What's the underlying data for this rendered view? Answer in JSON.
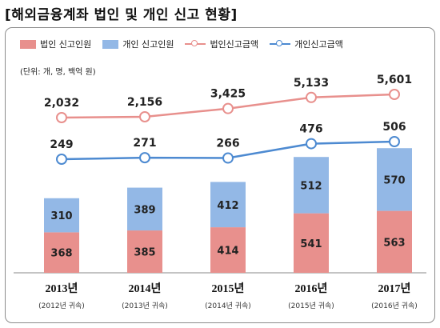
{
  "title": "[해외금융계좌 법인 및 개인 신고 현황]",
  "unit_note": "(단위: 개, 명, 백억 원)",
  "colors": {
    "corp_bar": "#e8908d",
    "indiv_bar": "#93b8e6",
    "corp_line": "#e8908d",
    "indiv_line": "#4d8ad1",
    "frame": "#8c8c8c"
  },
  "chart_data": {
    "type": "bar",
    "categories": [
      "2013년",
      "2014년",
      "2015년",
      "2016년",
      "2017년"
    ],
    "category_sublabels": [
      "(2012년 귀속)",
      "(2013년 귀속)",
      "(2014년 귀속)",
      "(2015년 귀속)",
      "(2016년 귀속)"
    ],
    "bar_series": [
      {
        "name": "법인 신고인원",
        "values": [
          368,
          385,
          414,
          541,
          563
        ]
      },
      {
        "name": "개인 신고인원",
        "values": [
          310,
          389,
          412,
          512,
          570
        ]
      }
    ],
    "line_series": [
      {
        "name": "법인신고금액",
        "values": [
          2032,
          2156,
          3425,
          5133,
          5601
        ]
      },
      {
        "name": "개인신고금액",
        "values": [
          249,
          271,
          266,
          476,
          506
        ]
      }
    ],
    "stacked": true,
    "grid": false,
    "legend_position": "top-left"
  }
}
